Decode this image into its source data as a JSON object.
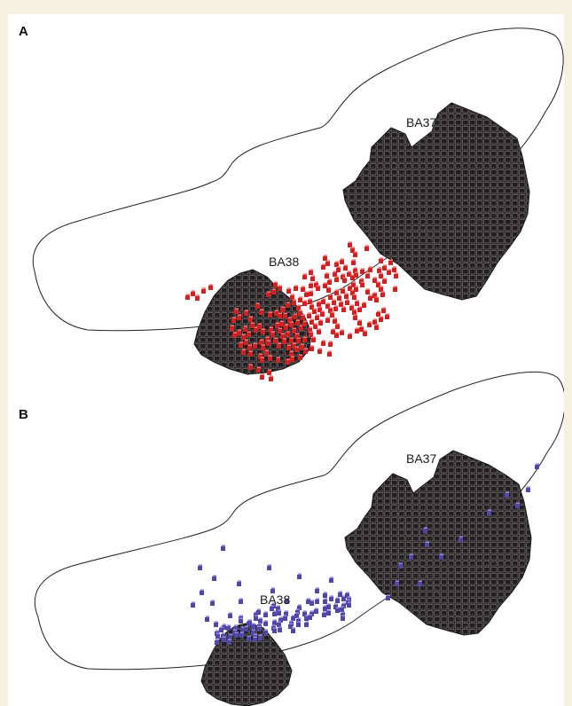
{
  "panels": [
    {
      "id": "A",
      "letter": "A",
      "labels": [
        "BA37",
        "BA38"
      ],
      "voxel_color": "#d42020",
      "voxel_highlight": "#ff6a6a"
    },
    {
      "id": "B",
      "letter": "B",
      "labels": [
        "BA37",
        "BA38"
      ],
      "voxel_color": "#4f48a8",
      "voxel_highlight": "#8c86dc"
    }
  ],
  "colors": {
    "background": "#f6f1df",
    "figure": "#ffffff",
    "region_fill": "#231f20",
    "outline": "#222222"
  }
}
